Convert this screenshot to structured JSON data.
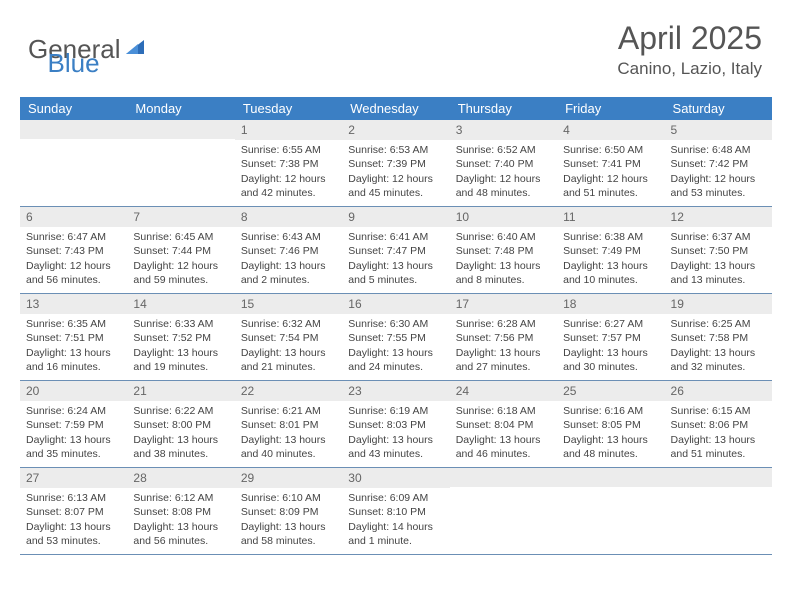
{
  "logo": {
    "part1": "General",
    "part2": "Blue"
  },
  "title": "April 2025",
  "location": "Canino, Lazio, Italy",
  "colors": {
    "header_bg": "#3b7fc4",
    "header_text": "#ffffff",
    "daynum_bg": "#ececec",
    "border": "#6b8fb5",
    "text": "#444444"
  },
  "weekdays": [
    "Sunday",
    "Monday",
    "Tuesday",
    "Wednesday",
    "Thursday",
    "Friday",
    "Saturday"
  ],
  "weeks": [
    [
      {
        "n": "",
        "sunrise": "",
        "sunset": "",
        "daylight": ""
      },
      {
        "n": "",
        "sunrise": "",
        "sunset": "",
        "daylight": ""
      },
      {
        "n": "1",
        "sunrise": "Sunrise: 6:55 AM",
        "sunset": "Sunset: 7:38 PM",
        "daylight": "Daylight: 12 hours and 42 minutes."
      },
      {
        "n": "2",
        "sunrise": "Sunrise: 6:53 AM",
        "sunset": "Sunset: 7:39 PM",
        "daylight": "Daylight: 12 hours and 45 minutes."
      },
      {
        "n": "3",
        "sunrise": "Sunrise: 6:52 AM",
        "sunset": "Sunset: 7:40 PM",
        "daylight": "Daylight: 12 hours and 48 minutes."
      },
      {
        "n": "4",
        "sunrise": "Sunrise: 6:50 AM",
        "sunset": "Sunset: 7:41 PM",
        "daylight": "Daylight: 12 hours and 51 minutes."
      },
      {
        "n": "5",
        "sunrise": "Sunrise: 6:48 AM",
        "sunset": "Sunset: 7:42 PM",
        "daylight": "Daylight: 12 hours and 53 minutes."
      }
    ],
    [
      {
        "n": "6",
        "sunrise": "Sunrise: 6:47 AM",
        "sunset": "Sunset: 7:43 PM",
        "daylight": "Daylight: 12 hours and 56 minutes."
      },
      {
        "n": "7",
        "sunrise": "Sunrise: 6:45 AM",
        "sunset": "Sunset: 7:44 PM",
        "daylight": "Daylight: 12 hours and 59 minutes."
      },
      {
        "n": "8",
        "sunrise": "Sunrise: 6:43 AM",
        "sunset": "Sunset: 7:46 PM",
        "daylight": "Daylight: 13 hours and 2 minutes."
      },
      {
        "n": "9",
        "sunrise": "Sunrise: 6:41 AM",
        "sunset": "Sunset: 7:47 PM",
        "daylight": "Daylight: 13 hours and 5 minutes."
      },
      {
        "n": "10",
        "sunrise": "Sunrise: 6:40 AM",
        "sunset": "Sunset: 7:48 PM",
        "daylight": "Daylight: 13 hours and 8 minutes."
      },
      {
        "n": "11",
        "sunrise": "Sunrise: 6:38 AM",
        "sunset": "Sunset: 7:49 PM",
        "daylight": "Daylight: 13 hours and 10 minutes."
      },
      {
        "n": "12",
        "sunrise": "Sunrise: 6:37 AM",
        "sunset": "Sunset: 7:50 PM",
        "daylight": "Daylight: 13 hours and 13 minutes."
      }
    ],
    [
      {
        "n": "13",
        "sunrise": "Sunrise: 6:35 AM",
        "sunset": "Sunset: 7:51 PM",
        "daylight": "Daylight: 13 hours and 16 minutes."
      },
      {
        "n": "14",
        "sunrise": "Sunrise: 6:33 AM",
        "sunset": "Sunset: 7:52 PM",
        "daylight": "Daylight: 13 hours and 19 minutes."
      },
      {
        "n": "15",
        "sunrise": "Sunrise: 6:32 AM",
        "sunset": "Sunset: 7:54 PM",
        "daylight": "Daylight: 13 hours and 21 minutes."
      },
      {
        "n": "16",
        "sunrise": "Sunrise: 6:30 AM",
        "sunset": "Sunset: 7:55 PM",
        "daylight": "Daylight: 13 hours and 24 minutes."
      },
      {
        "n": "17",
        "sunrise": "Sunrise: 6:28 AM",
        "sunset": "Sunset: 7:56 PM",
        "daylight": "Daylight: 13 hours and 27 minutes."
      },
      {
        "n": "18",
        "sunrise": "Sunrise: 6:27 AM",
        "sunset": "Sunset: 7:57 PM",
        "daylight": "Daylight: 13 hours and 30 minutes."
      },
      {
        "n": "19",
        "sunrise": "Sunrise: 6:25 AM",
        "sunset": "Sunset: 7:58 PM",
        "daylight": "Daylight: 13 hours and 32 minutes."
      }
    ],
    [
      {
        "n": "20",
        "sunrise": "Sunrise: 6:24 AM",
        "sunset": "Sunset: 7:59 PM",
        "daylight": "Daylight: 13 hours and 35 minutes."
      },
      {
        "n": "21",
        "sunrise": "Sunrise: 6:22 AM",
        "sunset": "Sunset: 8:00 PM",
        "daylight": "Daylight: 13 hours and 38 minutes."
      },
      {
        "n": "22",
        "sunrise": "Sunrise: 6:21 AM",
        "sunset": "Sunset: 8:01 PM",
        "daylight": "Daylight: 13 hours and 40 minutes."
      },
      {
        "n": "23",
        "sunrise": "Sunrise: 6:19 AM",
        "sunset": "Sunset: 8:03 PM",
        "daylight": "Daylight: 13 hours and 43 minutes."
      },
      {
        "n": "24",
        "sunrise": "Sunrise: 6:18 AM",
        "sunset": "Sunset: 8:04 PM",
        "daylight": "Daylight: 13 hours and 46 minutes."
      },
      {
        "n": "25",
        "sunrise": "Sunrise: 6:16 AM",
        "sunset": "Sunset: 8:05 PM",
        "daylight": "Daylight: 13 hours and 48 minutes."
      },
      {
        "n": "26",
        "sunrise": "Sunrise: 6:15 AM",
        "sunset": "Sunset: 8:06 PM",
        "daylight": "Daylight: 13 hours and 51 minutes."
      }
    ],
    [
      {
        "n": "27",
        "sunrise": "Sunrise: 6:13 AM",
        "sunset": "Sunset: 8:07 PM",
        "daylight": "Daylight: 13 hours and 53 minutes."
      },
      {
        "n": "28",
        "sunrise": "Sunrise: 6:12 AM",
        "sunset": "Sunset: 8:08 PM",
        "daylight": "Daylight: 13 hours and 56 minutes."
      },
      {
        "n": "29",
        "sunrise": "Sunrise: 6:10 AM",
        "sunset": "Sunset: 8:09 PM",
        "daylight": "Daylight: 13 hours and 58 minutes."
      },
      {
        "n": "30",
        "sunrise": "Sunrise: 6:09 AM",
        "sunset": "Sunset: 8:10 PM",
        "daylight": "Daylight: 14 hours and 1 minute."
      },
      {
        "n": "",
        "sunrise": "",
        "sunset": "",
        "daylight": ""
      },
      {
        "n": "",
        "sunrise": "",
        "sunset": "",
        "daylight": ""
      },
      {
        "n": "",
        "sunrise": "",
        "sunset": "",
        "daylight": ""
      }
    ]
  ]
}
